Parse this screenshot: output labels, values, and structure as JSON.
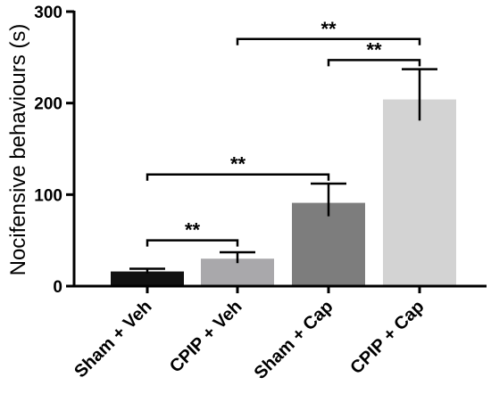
{
  "chart_data": {
    "type": "bar",
    "ylabel": "Nocifensive behaviours (s)",
    "xlabel": "",
    "ylim": [
      0,
      300
    ],
    "yticks": [
      0,
      100,
      200,
      300
    ],
    "categories": [
      "Sham + Veh",
      "CPIP + Veh",
      "Sham + Cap",
      "CPIP + Cap"
    ],
    "values": [
      16,
      30,
      91,
      204
    ],
    "errors": [
      3,
      7,
      21,
      33
    ],
    "colors": [
      "#111111",
      "#a9a8ab",
      "#7d7d7d",
      "#d3d3d3"
    ],
    "significance": [
      {
        "from": 0,
        "to": 1,
        "label": "**",
        "y": 50
      },
      {
        "from": 0,
        "to": 2,
        "label": "**",
        "y": 122
      },
      {
        "from": 1,
        "to": 3,
        "label": "**",
        "y": 270
      },
      {
        "from": 2,
        "to": 3,
        "label": "**",
        "y": 247
      }
    ]
  }
}
